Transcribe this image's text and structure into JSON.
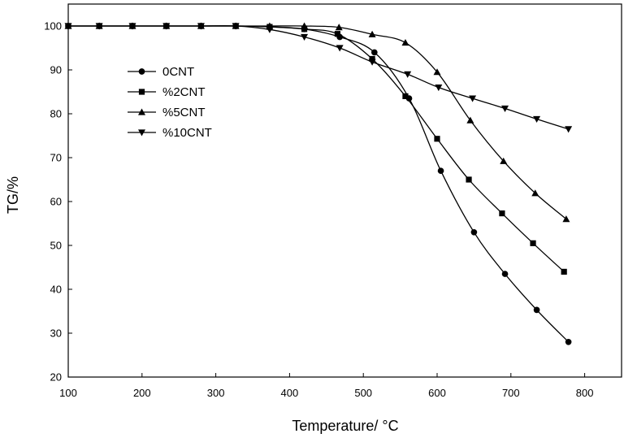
{
  "chart_data": {
    "type": "line",
    "title": "",
    "xlabel": "Temperature/ °C",
    "ylabel": "TG/%",
    "xlim": [
      100,
      850
    ],
    "ylim": [
      20,
      105
    ],
    "xticks": [
      100,
      200,
      300,
      400,
      500,
      600,
      700,
      800
    ],
    "yticks": [
      20,
      30,
      40,
      50,
      60,
      70,
      80,
      90,
      100
    ],
    "grid": false,
    "legend_position": "middle-left",
    "series": [
      {
        "name": "0CNT",
        "marker": "circle",
        "points": [
          [
            100,
            100
          ],
          [
            142,
            100
          ],
          [
            187,
            100
          ],
          [
            233,
            100
          ],
          [
            280,
            100
          ],
          [
            327,
            100
          ],
          [
            373,
            99.8
          ],
          [
            420,
            99.3
          ],
          [
            468,
            97.5
          ],
          [
            515,
            94
          ],
          [
            562,
            83.5
          ],
          [
            605,
            67
          ],
          [
            650,
            53
          ],
          [
            692,
            43.5
          ],
          [
            735,
            35.3
          ],
          [
            778,
            28
          ]
        ]
      },
      {
        "name": "%2CNT",
        "marker": "square",
        "points": [
          [
            100,
            100
          ],
          [
            142,
            100
          ],
          [
            187,
            100
          ],
          [
            233,
            100
          ],
          [
            280,
            100
          ],
          [
            327,
            100
          ],
          [
            373,
            99.8
          ],
          [
            420,
            99.3
          ],
          [
            465,
            98.2
          ],
          [
            512,
            92.5
          ],
          [
            557,
            84
          ],
          [
            600,
            74.3
          ],
          [
            643,
            65
          ],
          [
            688,
            57.3
          ],
          [
            730,
            50.5
          ],
          [
            772,
            44
          ]
        ]
      },
      {
        "name": "%5CNT",
        "marker": "triangle-up",
        "points": [
          [
            100,
            100
          ],
          [
            142,
            100
          ],
          [
            187,
            100
          ],
          [
            233,
            100
          ],
          [
            280,
            100
          ],
          [
            327,
            100
          ],
          [
            373,
            100
          ],
          [
            420,
            100
          ],
          [
            467,
            99.7
          ],
          [
            512,
            98.1
          ],
          [
            557,
            96.2
          ],
          [
            600,
            89.5
          ],
          [
            645,
            78.5
          ],
          [
            690,
            69.2
          ],
          [
            733,
            61.9
          ],
          [
            775,
            56
          ]
        ]
      },
      {
        "name": "%10CNT",
        "marker": "triangle-down",
        "points": [
          [
            100,
            100
          ],
          [
            142,
            100
          ],
          [
            187,
            100
          ],
          [
            233,
            100
          ],
          [
            280,
            100
          ],
          [
            327,
            100
          ],
          [
            373,
            99.2
          ],
          [
            420,
            97.5
          ],
          [
            468,
            95
          ],
          [
            512,
            91.8
          ],
          [
            560,
            89
          ],
          [
            602,
            86
          ],
          [
            648,
            83.5
          ],
          [
            692,
            81.2
          ],
          [
            735,
            78.8
          ],
          [
            778,
            76.5
          ]
        ]
      }
    ]
  }
}
